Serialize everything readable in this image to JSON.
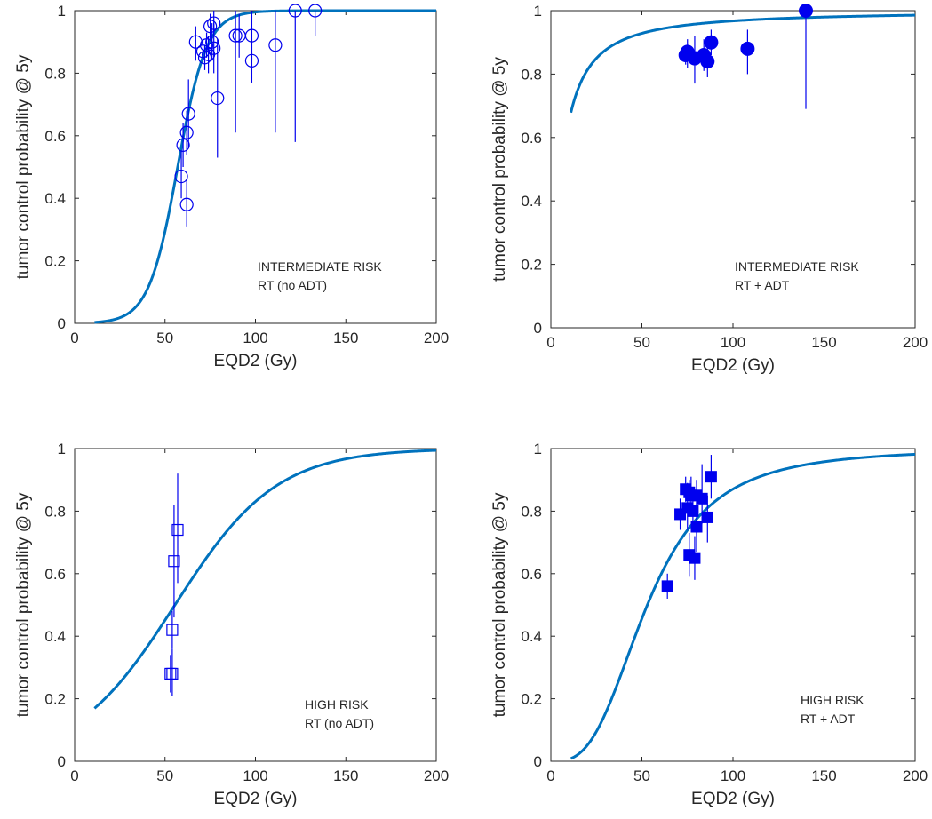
{
  "colors": {
    "curve": "#0072bd",
    "marker": "#0000ee",
    "axis": "#262626"
  },
  "chart_data": [
    {
      "type": "scatter",
      "xlabel": "EQD2 (Gy)",
      "ylabel": "tumor control probability @ 5y",
      "xlim": [
        0,
        200
      ],
      "ylim": [
        0,
        1
      ],
      "xticks": [
        0,
        50,
        100,
        150,
        200
      ],
      "yticks": [
        0,
        0.2,
        0.4,
        0.6,
        0.8,
        1
      ],
      "xtick_labels": [
        "0",
        "50",
        "100",
        "150",
        "200"
      ],
      "ytick_labels": [
        "0",
        "0.2",
        "0.4",
        "0.6",
        "0.8",
        "1"
      ],
      "annotation": [
        "INTERMEDIATE RISK",
        "RT (no ADT)"
      ],
      "marker": "open-circle",
      "points": [
        {
          "x": 59,
          "y": 0.47,
          "lo": 0.4,
          "hi": 0.55
        },
        {
          "x": 60,
          "y": 0.57,
          "lo": 0.5,
          "hi": 0.64
        },
        {
          "x": 62,
          "y": 0.38,
          "lo": 0.31,
          "hi": 0.46
        },
        {
          "x": 62,
          "y": 0.61,
          "lo": 0.54,
          "hi": 0.68
        },
        {
          "x": 63,
          "y": 0.67,
          "lo": 0.56,
          "hi": 0.78
        },
        {
          "x": 67,
          "y": 0.9,
          "lo": 0.84,
          "hi": 0.95
        },
        {
          "x": 71,
          "y": 0.87,
          "lo": 0.83,
          "hi": 0.91
        },
        {
          "x": 72,
          "y": 0.85,
          "lo": 0.81,
          "hi": 0.89
        },
        {
          "x": 73,
          "y": 0.89,
          "lo": 0.85,
          "hi": 0.93
        },
        {
          "x": 74,
          "y": 0.86,
          "lo": 0.8,
          "hi": 0.92
        },
        {
          "x": 75,
          "y": 0.95,
          "lo": 0.91,
          "hi": 0.99
        },
        {
          "x": 76,
          "y": 0.9,
          "lo": 0.84,
          "hi": 0.96
        },
        {
          "x": 77,
          "y": 0.96,
          "lo": 0.92,
          "hi": 1.0
        },
        {
          "x": 77,
          "y": 0.88,
          "lo": 0.8,
          "hi": 0.96
        },
        {
          "x": 79,
          "y": 0.72,
          "lo": 0.53,
          "hi": 0.91
        },
        {
          "x": 89,
          "y": 0.92,
          "lo": 0.61,
          "hi": 1.0
        },
        {
          "x": 91,
          "y": 0.92,
          "lo": 0.85,
          "hi": 0.99
        },
        {
          "x": 98,
          "y": 0.92,
          "lo": 0.84,
          "hi": 1.0
        },
        {
          "x": 98,
          "y": 0.84,
          "lo": 0.77,
          "hi": 0.91
        },
        {
          "x": 111,
          "y": 0.89,
          "lo": 0.61,
          "hi": 1.0
        },
        {
          "x": 122,
          "y": 1.0,
          "lo": 0.58,
          "hi": 1.0
        },
        {
          "x": 133,
          "y": 1.0,
          "lo": 0.92,
          "hi": 1.0
        }
      ],
      "curve": {
        "model": "logistic",
        "d50": 57,
        "slope": 8,
        "x_from": 11,
        "x_to": 200
      }
    },
    {
      "type": "scatter",
      "xlabel": "EQD2 (Gy)",
      "ylabel": "tumor control probability @ 5y",
      "xlim": [
        0,
        200
      ],
      "ylim": [
        0,
        1
      ],
      "xticks": [
        0,
        50,
        100,
        150,
        200
      ],
      "yticks": [
        0,
        0.2,
        0.4,
        0.6,
        0.8,
        1
      ],
      "xtick_labels": [
        "0",
        "50",
        "100",
        "150",
        "200"
      ],
      "ytick_labels": [
        "0",
        "0.2",
        "0.4",
        "0.6",
        "0.8",
        "1"
      ],
      "annotation": [
        "INTERMEDIATE RISK",
        "RT + ADT"
      ],
      "marker": "filled-circle",
      "points": [
        {
          "x": 74,
          "y": 0.86,
          "lo": 0.83,
          "hi": 0.89
        },
        {
          "x": 75,
          "y": 0.87,
          "lo": 0.82,
          "hi": 0.91
        },
        {
          "x": 79,
          "y": 0.85,
          "lo": 0.77,
          "hi": 0.92
        },
        {
          "x": 84,
          "y": 0.86,
          "lo": 0.81,
          "hi": 0.91
        },
        {
          "x": 86,
          "y": 0.84,
          "lo": 0.79,
          "hi": 0.89
        },
        {
          "x": 88,
          "y": 0.9,
          "lo": 0.86,
          "hi": 0.94
        },
        {
          "x": 108,
          "y": 0.88,
          "lo": 0.8,
          "hi": 0.94
        },
        {
          "x": 140,
          "y": 1.0,
          "lo": 0.69,
          "hi": 1.0
        }
      ],
      "curve": {
        "model": "loglogistic",
        "d50": 5.9,
        "slope": 1.2,
        "x_from": 11,
        "x_to": 200
      }
    },
    {
      "type": "scatter",
      "xlabel": "EQD2 (Gy)",
      "ylabel": "tumor control probability @ 5y",
      "xlim": [
        0,
        200
      ],
      "ylim": [
        0,
        1
      ],
      "xticks": [
        0,
        50,
        100,
        150,
        200
      ],
      "yticks": [
        0,
        0.2,
        0.4,
        0.6,
        0.8,
        1
      ],
      "xtick_labels": [
        "0",
        "50",
        "100",
        "150",
        "200"
      ],
      "ytick_labels": [
        "0",
        "0.2",
        "0.4",
        "0.6",
        "0.8",
        "1"
      ],
      "annotation": [
        "HIGH RISK",
        "RT (no ADT)"
      ],
      "marker": "open-square",
      "points": [
        {
          "x": 53,
          "y": 0.28,
          "lo": 0.22,
          "hi": 0.34
        },
        {
          "x": 54,
          "y": 0.28,
          "lo": 0.21,
          "hi": 0.36
        },
        {
          "x": 54,
          "y": 0.42,
          "lo": 0.36,
          "hi": 0.48
        },
        {
          "x": 55,
          "y": 0.64,
          "lo": 0.46,
          "hi": 0.82
        },
        {
          "x": 57,
          "y": 0.74,
          "lo": 0.57,
          "hi": 0.92
        }
      ],
      "curve": {
        "model": "logistic",
        "d50": 55.5,
        "slope": 28,
        "x_from": 11,
        "x_to": 200
      }
    },
    {
      "type": "scatter",
      "xlabel": "EQD2 (Gy)",
      "ylabel": "tumor control probability @ 5y",
      "xlim": [
        0,
        200
      ],
      "ylim": [
        0,
        1
      ],
      "xticks": [
        0,
        50,
        100,
        150,
        200
      ],
      "yticks": [
        0,
        0.2,
        0.4,
        0.6,
        0.8,
        1
      ],
      "xtick_labels": [
        "0",
        "50",
        "100",
        "150",
        "200"
      ],
      "ytick_labels": [
        "0",
        "0.2",
        "0.4",
        "0.6",
        "0.8",
        "1"
      ],
      "annotation": [
        "HIGH RISK",
        "RT + ADT"
      ],
      "marker": "filled-square",
      "points": [
        {
          "x": 64,
          "y": 0.56,
          "lo": 0.52,
          "hi": 0.6
        },
        {
          "x": 71,
          "y": 0.79,
          "lo": 0.74,
          "hi": 0.84
        },
        {
          "x": 74,
          "y": 0.87,
          "lo": 0.83,
          "hi": 0.91
        },
        {
          "x": 75,
          "y": 0.81,
          "lo": 0.74,
          "hi": 0.89
        },
        {
          "x": 76,
          "y": 0.86,
          "lo": 0.82,
          "hi": 0.9
        },
        {
          "x": 76,
          "y": 0.66,
          "lo": 0.59,
          "hi": 0.73
        },
        {
          "x": 77,
          "y": 0.85,
          "lo": 0.79,
          "hi": 0.91
        },
        {
          "x": 78,
          "y": 0.8,
          "lo": 0.74,
          "hi": 0.86
        },
        {
          "x": 79,
          "y": 0.65,
          "lo": 0.58,
          "hi": 0.72
        },
        {
          "x": 80,
          "y": 0.75,
          "lo": 0.67,
          "hi": 0.83
        },
        {
          "x": 80,
          "y": 0.85,
          "lo": 0.8,
          "hi": 0.9
        },
        {
          "x": 83,
          "y": 0.84,
          "lo": 0.76,
          "hi": 0.95
        },
        {
          "x": 86,
          "y": 0.78,
          "lo": 0.7,
          "hi": 0.85
        },
        {
          "x": 88,
          "y": 0.91,
          "lo": 0.84,
          "hi": 0.98
        }
      ],
      "curve": {
        "model": "loglogistic",
        "d50": 53,
        "slope": 3.0,
        "x_from": 11,
        "x_to": 200
      }
    }
  ]
}
